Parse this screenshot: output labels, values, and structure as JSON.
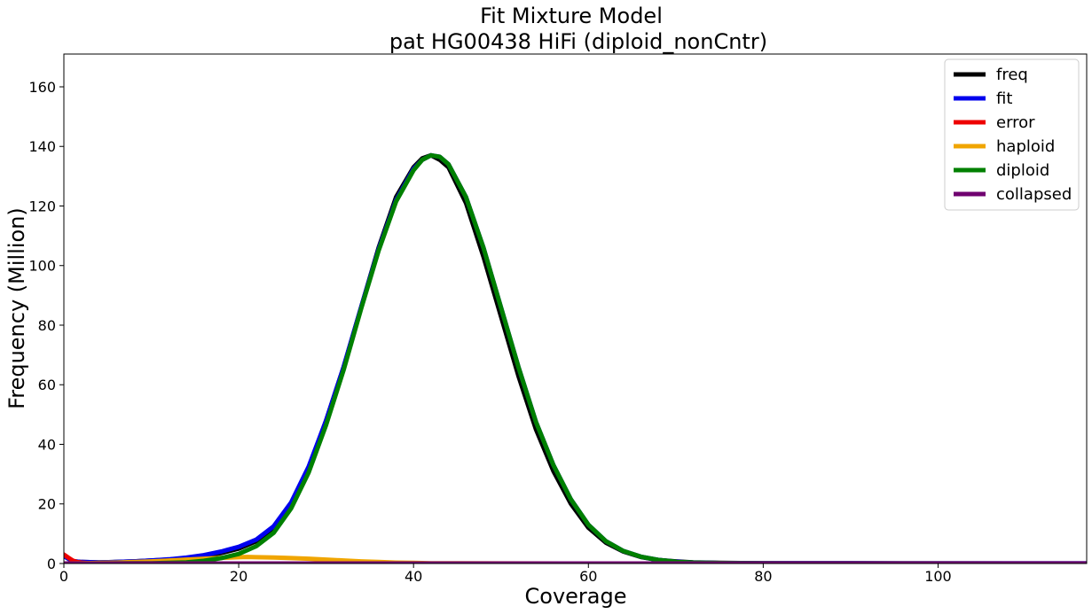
{
  "chart_data": {
    "type": "line",
    "title": "Fit Mixture Model",
    "subtitle": "pat HG00438 HiFi (diploid_nonCntr)",
    "xlabel": "Coverage",
    "ylabel": "Frequency (Million)",
    "xlim": [
      0,
      117
    ],
    "ylim": [
      0,
      171
    ],
    "xticks": [
      0,
      20,
      40,
      60,
      80,
      100
    ],
    "yticks": [
      0,
      20,
      40,
      60,
      80,
      100,
      120,
      140,
      160
    ],
    "grid": false,
    "legend_position": "top-right",
    "series": [
      {
        "name": "freq",
        "color": "#000000",
        "x": [
          0,
          1,
          2,
          4,
          6,
          8,
          10,
          12,
          14,
          16,
          18,
          20,
          22,
          24,
          26,
          28,
          30,
          32,
          34,
          36,
          38,
          40,
          41,
          42,
          43,
          44,
          46,
          48,
          50,
          52,
          54,
          56,
          58,
          60,
          62,
          64,
          66,
          68,
          70,
          72,
          75,
          80,
          90,
          100,
          117
        ],
        "y": [
          2.5,
          0.8,
          0.5,
          0.4,
          0.5,
          0.7,
          1.0,
          1.3,
          1.8,
          2.5,
          3.5,
          5.0,
          7.5,
          12.0,
          20.0,
          32.0,
          48.0,
          66.0,
          86.0,
          106.0,
          123.0,
          133.0,
          136.0,
          137.0,
          135.5,
          133.0,
          121.0,
          103.0,
          83.0,
          63.0,
          45.0,
          31.0,
          20.0,
          12.0,
          7.0,
          4.0,
          2.2,
          1.2,
          0.7,
          0.4,
          0.2,
          0.1,
          0.05,
          0.03,
          0.02
        ]
      },
      {
        "name": "fit",
        "color": "#0000ee",
        "x": [
          0,
          1,
          2,
          4,
          6,
          8,
          10,
          12,
          14,
          16,
          18,
          20,
          22,
          24,
          26,
          28,
          30,
          32,
          34,
          36,
          38,
          40,
          41,
          42,
          43,
          44,
          46,
          48,
          50,
          52,
          54,
          56,
          58,
          60,
          62,
          64,
          66,
          68,
          70,
          72,
          75,
          80,
          90,
          100,
          117
        ],
        "y": [
          2.5,
          0.8,
          0.5,
          0.4,
          0.5,
          0.7,
          1.0,
          1.4,
          2.0,
          2.8,
          4.0,
          5.6,
          8.0,
          12.5,
          20.5,
          32.5,
          48.0,
          66.0,
          86.0,
          105.5,
          122.0,
          132.5,
          135.5,
          137.0,
          136.5,
          134.0,
          123.0,
          106.0,
          86.0,
          66.0,
          47.5,
          33.0,
          21.5,
          13.0,
          7.5,
          4.2,
          2.3,
          1.2,
          0.6,
          0.3,
          0.15,
          0.08,
          0.05,
          0.03,
          0.02
        ]
      },
      {
        "name": "error",
        "color": "#ee0000",
        "x": [
          0,
          0.5,
          1,
          1.5,
          2,
          3,
          4,
          6,
          8,
          10,
          117
        ],
        "y": [
          3.0,
          2.0,
          1.0,
          0.5,
          0.3,
          0.1,
          0.05,
          0.02,
          0.01,
          0.0,
          0.0
        ]
      },
      {
        "name": "haploid",
        "color": "#f0a500",
        "x": [
          0,
          2,
          4,
          6,
          8,
          10,
          12,
          14,
          16,
          18,
          20,
          21,
          22,
          24,
          26,
          28,
          30,
          32,
          34,
          36,
          38,
          40,
          42,
          45,
          50,
          60,
          117
        ],
        "y": [
          0.0,
          0.1,
          0.2,
          0.3,
          0.5,
          0.7,
          1.0,
          1.3,
          1.6,
          1.9,
          2.1,
          2.2,
          2.1,
          2.0,
          1.8,
          1.6,
          1.3,
          1.0,
          0.7,
          0.5,
          0.3,
          0.2,
          0.1,
          0.05,
          0.02,
          0.0,
          0.0
        ]
      },
      {
        "name": "diploid",
        "color": "#008000",
        "x": [
          0,
          8,
          10,
          12,
          14,
          16,
          18,
          20,
          22,
          24,
          26,
          28,
          30,
          32,
          34,
          36,
          38,
          40,
          41,
          42,
          43,
          44,
          46,
          48,
          50,
          52,
          54,
          56,
          58,
          60,
          62,
          64,
          66,
          68,
          70,
          72,
          75,
          80,
          90,
          117
        ],
        "y": [
          0.0,
          0.05,
          0.1,
          0.2,
          0.4,
          0.9,
          1.8,
          3.2,
          5.8,
          10.3,
          18.5,
          30.5,
          46.5,
          65.0,
          85.5,
          105.0,
          121.5,
          132.0,
          135.5,
          137.0,
          136.5,
          134.0,
          123.0,
          106.0,
          86.0,
          66.0,
          47.5,
          33.0,
          21.5,
          13.0,
          7.5,
          4.2,
          2.3,
          1.2,
          0.6,
          0.3,
          0.15,
          0.05,
          0.02,
          0.0
        ]
      },
      {
        "name": "collapsed",
        "color": "#700070",
        "x": [
          0,
          117
        ],
        "y": [
          0.0,
          0.0
        ]
      }
    ]
  }
}
